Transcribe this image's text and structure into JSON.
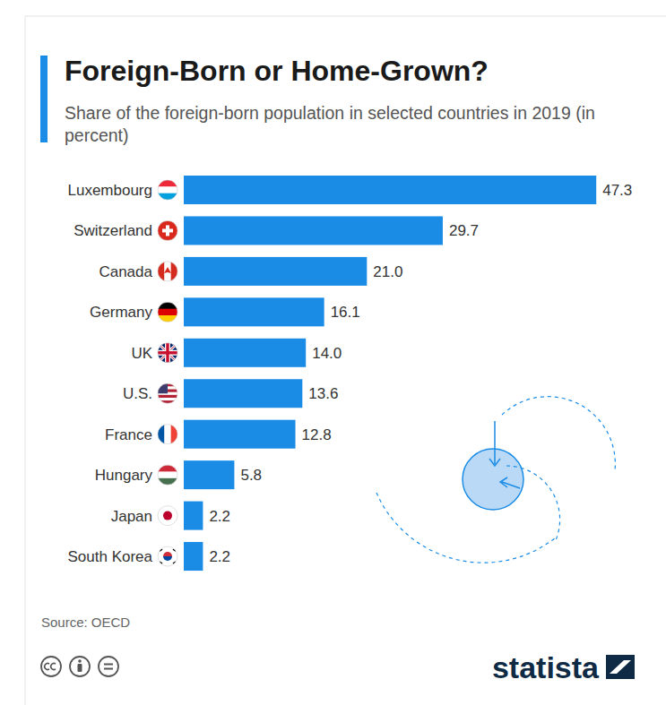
{
  "chart_data": {
    "type": "bar",
    "title": "Foreign-Born or Home-Grown?",
    "subtitle": "Share of the foreign-born population in selected countries in 2019 (in percent)",
    "categories": [
      "Luxembourg",
      "Switzerland",
      "Canada",
      "Germany",
      "UK",
      "U.S.",
      "France",
      "Hungary",
      "Japan",
      "South Korea"
    ],
    "values": [
      47.3,
      29.7,
      21.0,
      16.1,
      14.0,
      13.6,
      12.8,
      5.8,
      2.2,
      2.2
    ],
    "value_labels": [
      "47.3",
      "29.7",
      "21.0",
      "16.1",
      "14.0",
      "13.6",
      "12.8",
      "5.8",
      "2.2",
      "2.2"
    ],
    "color": "#1a8ce6",
    "orientation": "horizontal",
    "data_labels": true,
    "grid": false,
    "tick_labels": "y",
    "xlim": [
      0,
      48
    ],
    "source": "Source: OECD",
    "brand": "statista"
  }
}
